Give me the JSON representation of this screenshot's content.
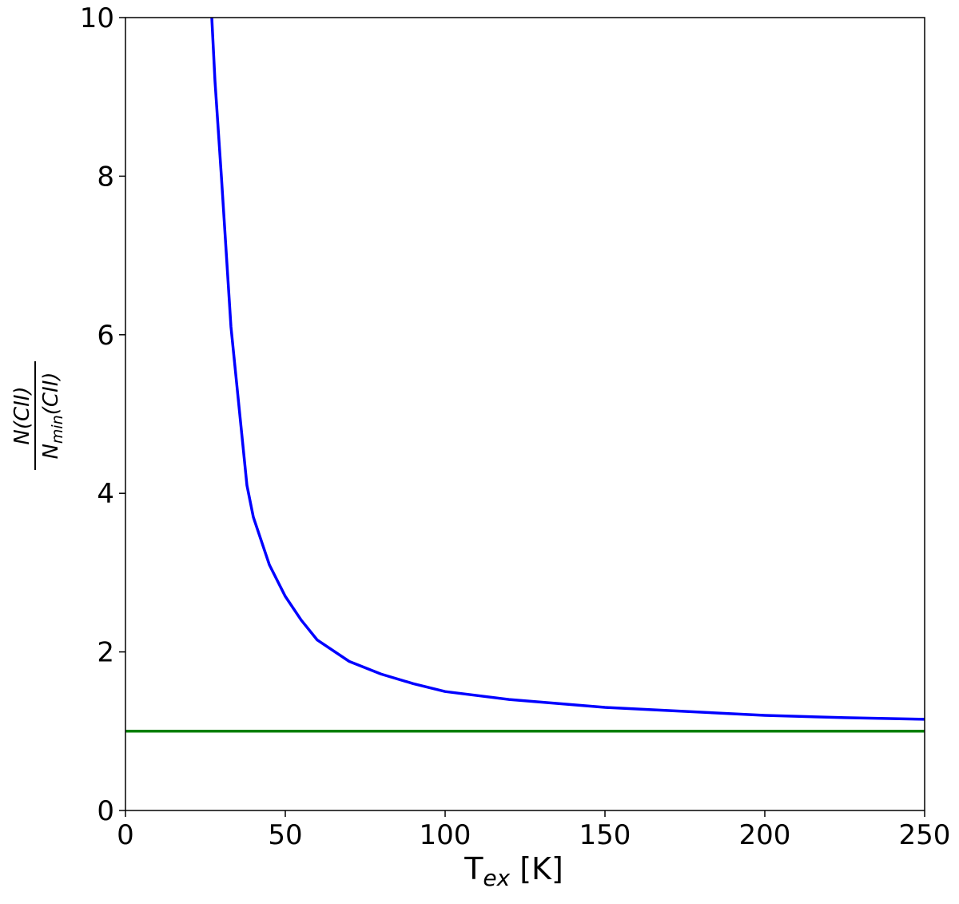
{
  "chart_data": {
    "type": "line",
    "xlabel": {
      "base": "T",
      "sub": "ex",
      "rest": "[K]"
    },
    "ylabel": {
      "numerator": "N(CII)",
      "den_base": "N",
      "den_sub": "min",
      "den_rest": "(CII)"
    },
    "xlim": [
      0,
      250
    ],
    "xticks": [
      0,
      50,
      100,
      150,
      200,
      250
    ],
    "ylim": [
      0,
      10
    ],
    "yticks": [
      0,
      2,
      4,
      6,
      8,
      10
    ],
    "series": [
      {
        "color": "#0000ff",
        "x": [
          27,
          28,
          30,
          33,
          35,
          38,
          40,
          45,
          50,
          55,
          60,
          70,
          80,
          90,
          100,
          120,
          150,
          175,
          200,
          225,
          250
        ],
        "values": [
          10,
          9.2,
          8,
          6.1,
          5.3,
          4.1,
          3.7,
          3.1,
          2.7,
          2.4,
          2.15,
          1.88,
          1.72,
          1.6,
          1.5,
          1.4,
          1.3,
          1.25,
          1.2,
          1.17,
          1.15
        ]
      },
      {
        "color": "#007f00",
        "x": [
          0,
          250
        ],
        "values": [
          1,
          1
        ]
      }
    ]
  }
}
